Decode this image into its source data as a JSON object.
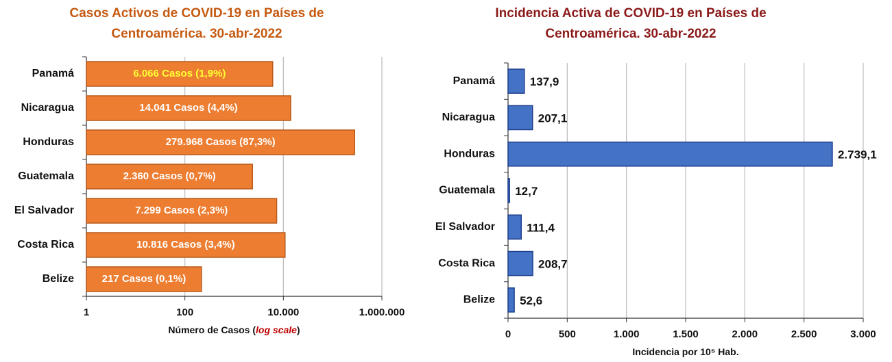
{
  "chart_data": [
    {
      "type": "bar",
      "orientation": "horizontal",
      "title": [
        "Casos Activos de COVID-19 en Países de",
        "Centroamérica. 30-abr-2022"
      ],
      "xlabel": [
        "Número de Casos (",
        "log scale",
        ")"
      ],
      "categories": [
        "Panamá",
        "Nicaragua",
        "Honduras",
        "Guatemala",
        "El Salvador",
        "Costa Rica",
        "Belize"
      ],
      "values": [
        6066,
        14041,
        279968,
        2360,
        7299,
        10816,
        217
      ],
      "value_labels": [
        "6.066 Casos (1,9%)",
        "14.041 Casos (4,4%)",
        "279.968 Casos (87,3%)",
        "2.360 Casos (0,7%)",
        "7.299 Casos (2,3%)",
        "10.816 Casos (3,4%)",
        "217 Casos (0,1%)"
      ],
      "value_label_colors": [
        "#ffff33",
        "#ffffff",
        "#ffffff",
        "#ffffff",
        "#ffffff",
        "#ffffff",
        "#ffffff"
      ],
      "value_label_position": "inside",
      "color": "#ed7d31",
      "edge_color": "#b85a1a",
      "title_color": "#c55a11",
      "xscale": "log",
      "xlim": [
        1,
        1000000
      ],
      "xticks": [
        1,
        100,
        {
          "value": 10000,
          "label": "10.000"
        },
        {
          "value": 1000000,
          "label": "1.000.000"
        }
      ],
      "grid": true
    },
    {
      "type": "bar",
      "orientation": "horizontal",
      "title": [
        "Incidencia Activa de COVID-19 en Países de",
        "Centroamérica. 30-abr-2022"
      ],
      "xlabel": [
        "Incidencia por 10⁵ Hab."
      ],
      "categories": [
        "Panamá",
        "Nicaragua",
        "Honduras",
        "Guatemala",
        "El Salvador",
        "Costa Rica",
        "Belize"
      ],
      "values": [
        137.9,
        207.1,
        2739.1,
        12.7,
        111.4,
        208.7,
        52.6
      ],
      "value_labels": [
        "137,9",
        "207,1",
        "2.739,1",
        "12,7",
        "111,4",
        "208,7",
        "52,6"
      ],
      "value_label_position": "outside",
      "color": "#4472c4",
      "edge_color": "#1f3f8f",
      "title_color": "#8b1a1a",
      "xscale": "linear",
      "xlim": [
        0,
        3000
      ],
      "xticks": [
        0,
        500,
        {
          "value": 1000,
          "label": "1.000"
        },
        {
          "value": 1500,
          "label": "1.500"
        },
        {
          "value": 2000,
          "label": "2.000"
        },
        {
          "value": 2500,
          "label": "2.500"
        },
        {
          "value": 3000,
          "label": "3.000"
        }
      ],
      "grid": true
    }
  ]
}
